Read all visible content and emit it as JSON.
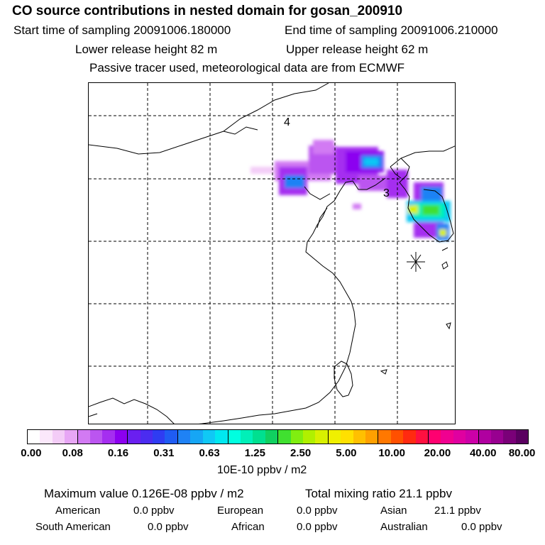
{
  "header": {
    "title": "CO  source contributions in nested domain for gosan_200910",
    "start_time": "Start time of sampling 20091006.180000",
    "end_time": "End time of sampling 20091006.210000",
    "lower_height": "Lower release height   82 m",
    "upper_height": "Upper release height   62 m",
    "note": "Passive tracer used, meteorological data are from ECMWF"
  },
  "map": {
    "labels": [
      "4",
      "3"
    ],
    "receptor_marker": "receptor-asterisk"
  },
  "colorbar": {
    "colors": [
      "#ffffff",
      "#fbe8fb",
      "#f3ccf7",
      "#e7a6f5",
      "#d27af3",
      "#bb55f0",
      "#a52ef0",
      "#8c00f0",
      "#6a1ff0",
      "#4b2cf0",
      "#2f3cf2",
      "#1f5cf3",
      "#1f82f5",
      "#16a6f5",
      "#10c8f5",
      "#00e8f0",
      "#00ffe0",
      "#00f0b8",
      "#00e090",
      "#10d060",
      "#40e030",
      "#80ee10",
      "#b0f000",
      "#d8f000",
      "#f0f000",
      "#ffe000",
      "#ffc000",
      "#ffa000",
      "#ff7800",
      "#ff5000",
      "#ff2a10",
      "#ff1040",
      "#ff0070",
      "#f00090",
      "#e000a0",
      "#cc00a8",
      "#b000a0",
      "#980090",
      "#7a0078",
      "#5a0060"
    ],
    "tick_labels": [
      "0.00",
      "0.08",
      "0.16",
      "0.31",
      "0.63",
      "1.25",
      "2.50",
      "5.00",
      "10.00",
      "20.00",
      "40.00",
      "80.00"
    ],
    "units": "10E-10 ppbv / m2"
  },
  "summary": {
    "maximum": "Maximum value  0.126E-08 ppbv / m2",
    "total": "Total mixing ratio       21.1 ppbv",
    "american_label": "American",
    "american_value": "0.0 ppbv",
    "european_label": "European",
    "european_value": "0.0 ppbv",
    "asian_label": "Asian",
    "asian_value": "21.1 ppbv",
    "south_american_label": "South American",
    "south_american_value": "0.0 ppbv",
    "african_label": "African",
    "african_value": "0.0 ppbv",
    "australian_label": "Australian",
    "australian_value": "0.0 ppbv"
  }
}
